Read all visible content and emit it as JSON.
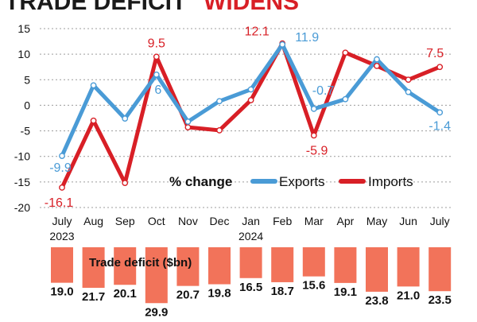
{
  "headline": {
    "part1": "TRADE DEFICIT",
    "part2": "WIDENS"
  },
  "colors": {
    "exports": "#4a9bd6",
    "imports": "#d81f26",
    "bars": "#f2735a",
    "grid": "#9c9c9c",
    "headline_dark": "#1a1a1a",
    "headline_accent": "#d81f26",
    "label_text": "#111111"
  },
  "chart_data": [
    {
      "type": "line",
      "ylabel_hidden": true,
      "x": [
        "July",
        "Aug",
        "Sep",
        "Oct",
        "Nov",
        "Dec",
        "Jan",
        "Feb",
        "Mar",
        "Apr",
        "May",
        "Jun",
        "July"
      ],
      "x_sublabels": [
        "2023",
        "",
        "",
        "",
        "",
        "",
        "2024",
        "",
        "",
        "",
        "",
        "",
        ""
      ],
      "ylim": [
        -20,
        15
      ],
      "yticks": [
        "15",
        "10",
        "5",
        "0",
        "-5",
        "-10",
        "-15",
        "-20"
      ],
      "ytick_values": [
        15,
        10,
        5,
        0,
        -5,
        -10,
        -15,
        -20
      ],
      "grid": "horizontal dashed",
      "legend_title": "% change",
      "legend_position": "lower-right",
      "series": [
        {
          "name": "Exports",
          "values": [
            -9.9,
            3.9,
            -2.6,
            6.0,
            -3.2,
            0.8,
            3.1,
            11.9,
            -0.7,
            1.2,
            9.0,
            2.6,
            -1.4
          ],
          "point_labels": [
            "-9.9",
            "",
            "",
            "6",
            "",
            "",
            "",
            "11.9",
            "-0.7",
            "",
            "",
            "",
            "-1.4"
          ]
        },
        {
          "name": "Imports",
          "values": [
            -16.1,
            -3.0,
            -15.2,
            9.5,
            -4.3,
            -4.9,
            1.0,
            12.1,
            -5.9,
            10.3,
            7.7,
            5.0,
            7.5
          ],
          "point_labels": [
            "-16.1",
            "",
            "",
            "9.5",
            "",
            "",
            "",
            "12.1",
            "-5.9",
            "",
            "",
            "",
            "7.5"
          ]
        }
      ]
    },
    {
      "type": "bar",
      "title": "Trade deficit ($bn)",
      "categories": [
        "July",
        "Aug",
        "Sep",
        "Oct",
        "Nov",
        "Dec",
        "Jan",
        "Feb",
        "Mar",
        "Apr",
        "May",
        "Jun",
        "July"
      ],
      "values": [
        19.0,
        21.7,
        20.1,
        29.9,
        20.7,
        19.8,
        16.5,
        18.7,
        15.6,
        19.1,
        23.8,
        21.0,
        23.5
      ],
      "labels": [
        "19.0",
        "21.7",
        "20.1",
        "29.9",
        "20.7",
        "19.8",
        "16.5",
        "18.7",
        "15.6",
        "19.1",
        "23.8",
        "21.0",
        "23.5"
      ]
    }
  ]
}
